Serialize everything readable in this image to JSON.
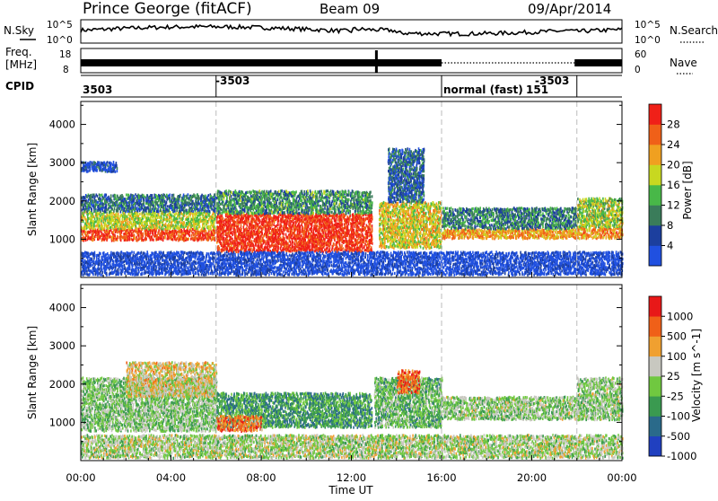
{
  "header": {
    "station": "Prince George (fitACF)",
    "beam": "Beam 09",
    "date": "09/Apr/2014"
  },
  "noise_panel": {
    "left_label": "N.Sky",
    "right_label": "N.Search",
    "left_ticks": [
      "10^5",
      "10^0"
    ],
    "right_ticks": [
      "10^5",
      "10^0"
    ]
  },
  "freq_panel": {
    "left_label_1": "Freq.",
    "left_label_2": "[MHz]",
    "left_ticks": [
      "18",
      "8"
    ],
    "right_label": "Nave",
    "right_ticks": [
      "60",
      "0"
    ]
  },
  "cpid_panel": {
    "label": "CPID",
    "segments": [
      {
        "text": "3503",
        "start_h": 0
      },
      {
        "text": "-3503",
        "start_h": 6
      },
      {
        "text": "normal (fast)",
        "start_h": 16
      },
      {
        "text": "151",
        "start_h": 16
      },
      {
        "text": "-3503",
        "start_h": 22
      }
    ]
  },
  "chart_data": [
    {
      "type": "heatmap",
      "name": "power",
      "xlabel": "",
      "ylabel": "Slant Range [km]",
      "x_range_h": [
        0,
        24
      ],
      "ylim": [
        0,
        4600
      ],
      "yticks": [
        "1000",
        "2000",
        "3000",
        "4000"
      ],
      "colorbar_label": "Power [dB]",
      "colorbar_ticks": [
        "4",
        "8",
        "12",
        "16",
        "20",
        "24",
        "28"
      ],
      "colorbar_range": [
        0,
        32
      ],
      "colors": [
        "#2050e0",
        "#1c3f9e",
        "#3a7c5a",
        "#48b848",
        "#c8d820",
        "#f0a020",
        "#f06018",
        "#f02018"
      ],
      "scatter_bands": [
        {
          "x0": 0,
          "x1": 6,
          "y0": 1000,
          "y1": 1300,
          "level": 0.88
        },
        {
          "x0": 0,
          "x1": 6,
          "y0": 1300,
          "y1": 1750,
          "level": 0.55
        },
        {
          "x0": 0,
          "x1": 6,
          "y0": 1750,
          "y1": 2200,
          "level": 0.25
        },
        {
          "x0": 0,
          "x1": 1.6,
          "y0": 2800,
          "y1": 3050,
          "level": 0.12
        },
        {
          "x0": 6,
          "x1": 12.9,
          "y0": 700,
          "y1": 1700,
          "level": 0.92
        },
        {
          "x0": 6,
          "x1": 12.9,
          "y0": 1700,
          "y1": 2300,
          "level": 0.35
        },
        {
          "x0": 13.2,
          "x1": 16,
          "y0": 800,
          "y1": 2000,
          "level": 0.6
        },
        {
          "x0": 13.6,
          "x1": 15.2,
          "y0": 2000,
          "y1": 3400,
          "level": 0.22
        },
        {
          "x0": 16,
          "x1": 22,
          "y0": 1050,
          "y1": 1300,
          "level": 0.7
        },
        {
          "x0": 16,
          "x1": 22,
          "y0": 1300,
          "y1": 1850,
          "level": 0.3
        },
        {
          "x0": 22,
          "x1": 24,
          "y0": 1050,
          "y1": 1350,
          "level": 0.72
        },
        {
          "x0": 22,
          "x1": 24,
          "y0": 1350,
          "y1": 2100,
          "level": 0.5
        },
        {
          "x0": 0,
          "x1": 24,
          "y0": 100,
          "y1": 700,
          "level": 0.05
        }
      ]
    },
    {
      "type": "heatmap",
      "name": "velocity",
      "xlabel": "Time UT",
      "ylabel": "Slant Range [km]",
      "x_range_h": [
        0,
        24
      ],
      "ylim": [
        0,
        4600
      ],
      "yticks": [
        "1000",
        "2000",
        "3000",
        "4000"
      ],
      "xticks": [
        "00:00",
        "04:00",
        "08:00",
        "12:00",
        "16:00",
        "20:00",
        "00:00"
      ],
      "colorbar_label": "Velocity [m s^-1]",
      "colorbar_ticks": [
        "1000",
        "500",
        "100",
        "25",
        "-25",
        "-100",
        "-500",
        "-1000"
      ],
      "colors": [
        "#2040c0",
        "#2a6a8a",
        "#3a9a50",
        "#70c840",
        "#c8c8c0",
        "#f0a030",
        "#f06018",
        "#e81818"
      ],
      "scatter_bands": [
        {
          "x0": 0,
          "x1": 6,
          "y0": 800,
          "y1": 2200,
          "level": 0.45
        },
        {
          "x0": 2,
          "x1": 6,
          "y0": 1700,
          "y1": 2600,
          "level": 0.6
        },
        {
          "x0": 6,
          "x1": 12.9,
          "y0": 900,
          "y1": 1800,
          "level": 0.3
        },
        {
          "x0": 6,
          "x1": 8,
          "y0": 800,
          "y1": 1200,
          "level": 0.75
        },
        {
          "x0": 13,
          "x1": 16,
          "y0": 900,
          "y1": 2200,
          "level": 0.4
        },
        {
          "x0": 14,
          "x1": 15,
          "y0": 1800,
          "y1": 2400,
          "level": 0.8
        },
        {
          "x0": 16,
          "x1": 22,
          "y0": 1100,
          "y1": 1700,
          "level": 0.47
        },
        {
          "x0": 22,
          "x1": 24,
          "y0": 1100,
          "y1": 2200,
          "level": 0.46
        },
        {
          "x0": 0,
          "x1": 24,
          "y0": 100,
          "y1": 700,
          "level": 0.5
        }
      ]
    }
  ],
  "mode_change_hours": [
    6,
    16,
    22
  ]
}
